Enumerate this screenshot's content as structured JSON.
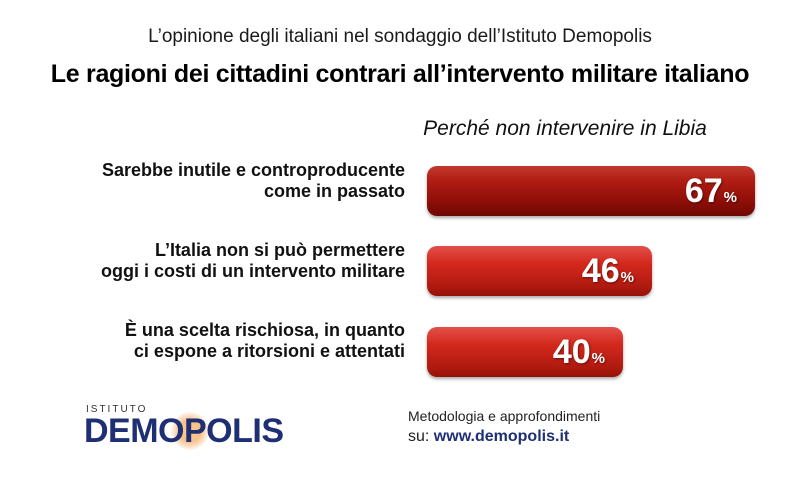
{
  "header": {
    "subtitle": "L’opinione degli italiani nel sondaggio dell’Istituto Demopolis",
    "title": "Le ragioni dei cittadini contrari all’intervento militare italiano"
  },
  "chart_data": {
    "type": "bar",
    "orientation": "horizontal",
    "title": "Perché non intervenire in Libia",
    "categories": [
      "Sarebbe inutile e controproducente come in passato",
      "L’Italia non si può permettere oggi i costi di un intervento militare",
      "È una scelta rischiosa, in quanto ci espone a ritorsioni e attentati"
    ],
    "category_lines": [
      [
        "Sarebbe inutile e controproducente",
        "come in passato"
      ],
      [
        "L’Italia non si può permettere",
        "oggi i costi di un intervento militare"
      ],
      [
        "È una scelta rischiosa, in quanto",
        "ci espone a ritorsioni e attentati"
      ]
    ],
    "values": [
      67,
      46,
      40
    ],
    "value_labels": [
      "67",
      "46",
      "40"
    ],
    "unit": "%",
    "bar_colors": [
      "#8a0d07",
      "#b01a10",
      "#d4281c"
    ],
    "xlim": [
      0,
      100
    ],
    "grid": false,
    "legend": "none"
  },
  "logo": {
    "top": "ISTITUTO",
    "main": "DEMOPOLIS"
  },
  "footer": {
    "line1": "Metodologia e approfondimenti",
    "prefix": "su: ",
    "url": "www.demopolis.it"
  }
}
